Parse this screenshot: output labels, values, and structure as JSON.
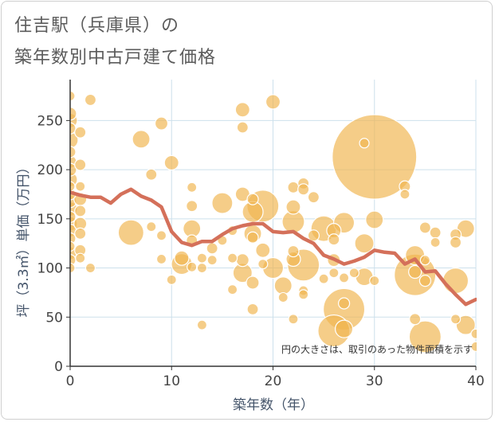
{
  "title_lines": [
    "住吉駅（兵庫県）の",
    "築年数別中古戸建て価格"
  ],
  "note": "円の大きさは、取引のあった物件面積を示す",
  "colors": {
    "bubble": "#f0b650",
    "line": "#d4705a",
    "grid": "#cde0ec"
  },
  "chart_data": {
    "type": "scatter",
    "xlabel": "築年数（年）",
    "ylabel": "坪（3.3㎡）単価（万円）",
    "xlim": [
      0,
      40
    ],
    "ylim": [
      0,
      290
    ],
    "xticks": [
      0,
      10,
      20,
      30,
      40
    ],
    "yticks": [
      0,
      50,
      100,
      150,
      200,
      250
    ],
    "grid": true,
    "points": [
      {
        "x": 0,
        "y": 275,
        "r": 6
      },
      {
        "x": 0,
        "y": 257,
        "r": 8
      },
      {
        "x": 0,
        "y": 250,
        "r": 9
      },
      {
        "x": 0,
        "y": 242,
        "r": 7
      },
      {
        "x": 0,
        "y": 230,
        "r": 10
      },
      {
        "x": 0,
        "y": 218,
        "r": 7
      },
      {
        "x": 0,
        "y": 208,
        "r": 8
      },
      {
        "x": 0,
        "y": 200,
        "r": 8
      },
      {
        "x": 0,
        "y": 190,
        "r": 9
      },
      {
        "x": 0,
        "y": 183,
        "r": 6
      },
      {
        "x": 0,
        "y": 175,
        "r": 7
      },
      {
        "x": 0,
        "y": 168,
        "r": 8
      },
      {
        "x": 0,
        "y": 160,
        "r": 9
      },
      {
        "x": 0,
        "y": 152,
        "r": 7
      },
      {
        "x": 0,
        "y": 145,
        "r": 9
      },
      {
        "x": 0,
        "y": 138,
        "r": 8
      },
      {
        "x": 0,
        "y": 130,
        "r": 7
      },
      {
        "x": 0,
        "y": 122,
        "r": 6
      },
      {
        "x": 0,
        "y": 115,
        "r": 8
      },
      {
        "x": 0,
        "y": 108,
        "r": 7
      },
      {
        "x": 0,
        "y": 100,
        "r": 6
      },
      {
        "x": 1,
        "y": 238,
        "r": 7
      },
      {
        "x": 1,
        "y": 205,
        "r": 7
      },
      {
        "x": 1,
        "y": 183,
        "r": 6
      },
      {
        "x": 1,
        "y": 170,
        "r": 8
      },
      {
        "x": 1,
        "y": 158,
        "r": 7
      },
      {
        "x": 1,
        "y": 145,
        "r": 8
      },
      {
        "x": 1,
        "y": 135,
        "r": 7
      },
      {
        "x": 1,
        "y": 118,
        "r": 7
      },
      {
        "x": 1,
        "y": 110,
        "r": 6
      },
      {
        "x": 2,
        "y": 271,
        "r": 7
      },
      {
        "x": 2,
        "y": 100,
        "r": 6
      },
      {
        "x": 6,
        "y": 136,
        "r": 16
      },
      {
        "x": 7,
        "y": 231,
        "r": 11
      },
      {
        "x": 8,
        "y": 195,
        "r": 7
      },
      {
        "x": 8,
        "y": 142,
        "r": 6
      },
      {
        "x": 9,
        "y": 247,
        "r": 8
      },
      {
        "x": 9,
        "y": 133,
        "r": 6
      },
      {
        "x": 9,
        "y": 109,
        "r": 6
      },
      {
        "x": 10,
        "y": 207,
        "r": 9
      },
      {
        "x": 10,
        "y": 88,
        "r": 6
      },
      {
        "x": 11,
        "y": 104,
        "r": 13
      },
      {
        "x": 11,
        "y": 110,
        "r": 9
      },
      {
        "x": 12,
        "y": 182,
        "r": 6
      },
      {
        "x": 12,
        "y": 163,
        "r": 7
      },
      {
        "x": 12,
        "y": 140,
        "r": 11
      },
      {
        "x": 12,
        "y": 128,
        "r": 7
      },
      {
        "x": 12,
        "y": 101,
        "r": 6
      },
      {
        "x": 13,
        "y": 110,
        "r": 6
      },
      {
        "x": 13,
        "y": 100,
        "r": 6
      },
      {
        "x": 13,
        "y": 42,
        "r": 6
      },
      {
        "x": 14,
        "y": 120,
        "r": 7
      },
      {
        "x": 14,
        "y": 108,
        "r": 6
      },
      {
        "x": 15,
        "y": 166,
        "r": 13
      },
      {
        "x": 15,
        "y": 128,
        "r": 6
      },
      {
        "x": 16,
        "y": 138,
        "r": 6
      },
      {
        "x": 16,
        "y": 110,
        "r": 6
      },
      {
        "x": 16,
        "y": 78,
        "r": 6
      },
      {
        "x": 17,
        "y": 261,
        "r": 9
      },
      {
        "x": 17,
        "y": 243,
        "r": 7
      },
      {
        "x": 17,
        "y": 175,
        "r": 9
      },
      {
        "x": 17,
        "y": 108,
        "r": 8
      },
      {
        "x": 17,
        "y": 95,
        "r": 12
      },
      {
        "x": 18,
        "y": 170,
        "r": 7
      },
      {
        "x": 18,
        "y": 157,
        "r": 13
      },
      {
        "x": 18,
        "y": 135,
        "r": 11
      },
      {
        "x": 18,
        "y": 131,
        "r": 7
      },
      {
        "x": 18,
        "y": 85,
        "r": 8
      },
      {
        "x": 18,
        "y": 58,
        "r": 7
      },
      {
        "x": 19,
        "y": 163,
        "r": 20
      },
      {
        "x": 19,
        "y": 118,
        "r": 9
      },
      {
        "x": 19,
        "y": 104,
        "r": 6
      },
      {
        "x": 20,
        "y": 269,
        "r": 9
      },
      {
        "x": 20,
        "y": 100,
        "r": 13
      },
      {
        "x": 21,
        "y": 82,
        "r": 11
      },
      {
        "x": 21,
        "y": 70,
        "r": 6
      },
      {
        "x": 22,
        "y": 182,
        "r": 7
      },
      {
        "x": 22,
        "y": 162,
        "r": 9
      },
      {
        "x": 22,
        "y": 147,
        "r": 14
      },
      {
        "x": 22,
        "y": 117,
        "r": 7
      },
      {
        "x": 22,
        "y": 109,
        "r": 9
      },
      {
        "x": 22,
        "y": 48,
        "r": 6
      },
      {
        "x": 23,
        "y": 186,
        "r": 7
      },
      {
        "x": 23,
        "y": 180,
        "r": 7
      },
      {
        "x": 23,
        "y": 103,
        "r": 20
      },
      {
        "x": 23,
        "y": 77,
        "r": 6
      },
      {
        "x": 23,
        "y": 73,
        "r": 6
      },
      {
        "x": 24,
        "y": 172,
        "r": 7
      },
      {
        "x": 24,
        "y": 133,
        "r": 7
      },
      {
        "x": 25,
        "y": 140,
        "r": 16
      },
      {
        "x": 25,
        "y": 89,
        "r": 6
      },
      {
        "x": 26,
        "y": 138,
        "r": 9
      },
      {
        "x": 26,
        "y": 129,
        "r": 7
      },
      {
        "x": 26,
        "y": 108,
        "r": 8
      },
      {
        "x": 26,
        "y": 95,
        "r": 6
      },
      {
        "x": 26,
        "y": 36,
        "r": 20
      },
      {
        "x": 27,
        "y": 146,
        "r": 13
      },
      {
        "x": 27,
        "y": 64,
        "r": 7
      },
      {
        "x": 27,
        "y": 58,
        "r": 26
      },
      {
        "x": 27,
        "y": 38,
        "r": 11
      },
      {
        "x": 27,
        "y": 90,
        "r": 6
      },
      {
        "x": 28,
        "y": 95,
        "r": 6
      },
      {
        "x": 29,
        "y": 227,
        "r": 6
      },
      {
        "x": 29,
        "y": 125,
        "r": 12
      },
      {
        "x": 29,
        "y": 91,
        "r": 11
      },
      {
        "x": 30,
        "y": 213,
        "r": 53
      },
      {
        "x": 30,
        "y": 149,
        "r": 11
      },
      {
        "x": 30,
        "y": 87,
        "r": 6
      },
      {
        "x": 33,
        "y": 183,
        "r": 7
      },
      {
        "x": 33,
        "y": 175,
        "r": 6
      },
      {
        "x": 34,
        "y": 113,
        "r": 12
      },
      {
        "x": 34,
        "y": 96,
        "r": 8
      },
      {
        "x": 34,
        "y": 93,
        "r": 26
      },
      {
        "x": 34,
        "y": 48,
        "r": 7
      },
      {
        "x": 35,
        "y": 141,
        "r": 7
      },
      {
        "x": 35,
        "y": 108,
        "r": 6
      },
      {
        "x": 35,
        "y": 87,
        "r": 7
      },
      {
        "x": 36,
        "y": 136,
        "r": 7
      },
      {
        "x": 36,
        "y": 126,
        "r": 6
      },
      {
        "x": 35,
        "y": 30,
        "r": 20
      },
      {
        "x": 38,
        "y": 134,
        "r": 7
      },
      {
        "x": 38,
        "y": 126,
        "r": 7
      },
      {
        "x": 38,
        "y": 87,
        "r": 16
      },
      {
        "x": 38,
        "y": 48,
        "r": 6
      },
      {
        "x": 39,
        "y": 140,
        "r": 11
      },
      {
        "x": 39,
        "y": 42,
        "r": 12
      },
      {
        "x": 40,
        "y": 33,
        "r": 6
      },
      {
        "x": 40,
        "y": 20,
        "r": 6
      }
    ],
    "trend": {
      "x": [
        0,
        1,
        2,
        3,
        4,
        5,
        6,
        7,
        8,
        9,
        10,
        11,
        12,
        13,
        14,
        15,
        16,
        17,
        18,
        19,
        20,
        21,
        22,
        23,
        24,
        25,
        26,
        27,
        28,
        29,
        30,
        31,
        32,
        33,
        34,
        35,
        36,
        37,
        38,
        39,
        40
      ],
      "y": [
        177,
        174,
        172,
        172,
        166,
        175,
        180,
        173,
        169,
        162,
        137,
        126,
        123,
        127,
        127,
        134,
        140,
        143,
        145,
        145,
        137,
        136,
        137,
        130,
        125,
        113,
        109,
        104,
        107,
        111,
        118,
        116,
        115,
        104,
        109,
        96,
        97,
        84,
        73,
        63,
        68
      ]
    }
  }
}
